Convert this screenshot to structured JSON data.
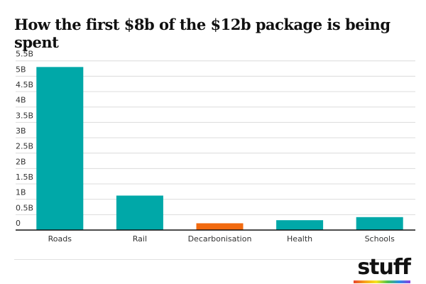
{
  "chart_data": {
    "type": "bar",
    "title": "How the first $8b of the $12b package is being spent",
    "categories": [
      "Roads",
      "Rail",
      "Decarbonisation",
      "Health",
      "Schools"
    ],
    "values": [
      5.3,
      1.12,
      0.22,
      0.32,
      0.42
    ],
    "unit": "B",
    "ylim": [
      0,
      5.5
    ],
    "yticks": [
      0,
      0.5,
      1,
      1.5,
      2,
      2.5,
      3,
      3.5,
      4,
      4.5,
      5,
      5.5
    ],
    "ytick_labels": [
      "0",
      "0.5B",
      "1B",
      "1.5B",
      "2B",
      "2.5B",
      "3B",
      "3.5B",
      "4B",
      "4.5B",
      "5B",
      "5.5B"
    ],
    "grid": true,
    "colors": [
      "#00a8a8",
      "#00a8a8",
      "#f26a0f",
      "#00a8a8",
      "#00a8a8"
    ]
  },
  "brand": {
    "logo": "stuff"
  }
}
